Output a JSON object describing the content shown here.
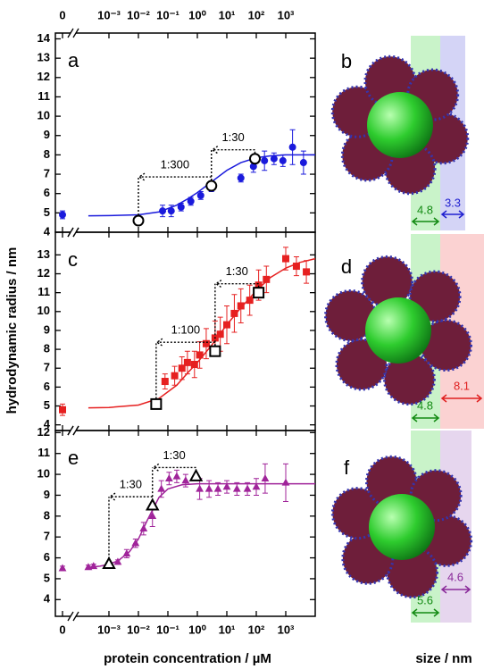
{
  "chart_data": [
    {
      "type": "scatter",
      "panel_label": "a",
      "xscale": "log",
      "xlim": [
        0.0001,
        10000
      ],
      "ylim": [
        4,
        14.3
      ],
      "yticks": [
        4,
        5,
        6,
        7,
        8,
        9,
        10,
        11,
        12,
        13,
        14
      ],
      "xticks": [
        0,
        {
          "value": 0.001,
          "label": "10⁻³"
        },
        {
          "value": 0.01,
          "label": "10⁻²"
        },
        {
          "value": 0.1,
          "label": "10⁻¹"
        },
        {
          "value": 1,
          "label": "10⁰"
        },
        {
          "value": 10,
          "label": "10¹"
        },
        {
          "value": 100,
          "label": "10²"
        },
        {
          "value": 1000,
          "label": "10³"
        }
      ],
      "series": [
        {
          "style": "line",
          "color": "#1a1adc",
          "x": [
            0.0002,
            0.001,
            0.01,
            0.05,
            0.2,
            0.5,
            1,
            3,
            10,
            30,
            100,
            300,
            1000,
            3000,
            10000
          ],
          "values": [
            4.85,
            4.86,
            4.9,
            5.05,
            5.4,
            5.75,
            6.05,
            6.6,
            7.2,
            7.6,
            7.85,
            7.95,
            8.0,
            8.0,
            8.0
          ]
        },
        {
          "style": "points",
          "marker": "circle",
          "color": "#1a1adc",
          "x": [
            0,
            0.066,
            0.13,
            0.28,
            0.6,
            1.3,
            3,
            30,
            80,
            190,
            400,
            800,
            1700,
            4000
          ],
          "values": [
            4.9,
            5.1,
            5.1,
            5.3,
            5.6,
            5.9,
            6.3,
            6.8,
            7.4,
            7.7,
            7.8,
            7.7,
            8.4,
            7.6
          ],
          "errors": [
            0.2,
            0.3,
            0.3,
            0.2,
            0.2,
            0.2,
            0.2,
            0.2,
            0.3,
            0.5,
            0.3,
            0.3,
            0.9,
            0.6
          ]
        },
        {
          "style": "open",
          "marker": "circle",
          "color": "#000000",
          "x": [
            0.01,
            3,
            90
          ],
          "values": [
            4.6,
            6.4,
            7.8
          ]
        }
      ],
      "annotations": [
        "1:300",
        "1:30"
      ]
    },
    {
      "type": "scatter",
      "panel_label": "c",
      "xscale": "log",
      "xlim": [
        0.0001,
        10000
      ],
      "ylim": [
        3.7,
        14.2
      ],
      "yticks": [
        4,
        5,
        6,
        7,
        8,
        9,
        10,
        11,
        12,
        13
      ],
      "series": [
        {
          "style": "line",
          "color": "#e62020",
          "x": [
            0.0002,
            0.001,
            0.01,
            0.05,
            0.2,
            0.5,
            1,
            3,
            10,
            30,
            100,
            300,
            1000,
            3000,
            10000
          ],
          "values": [
            4.9,
            4.92,
            5.05,
            5.4,
            6.1,
            6.8,
            7.3,
            8.2,
            9.3,
            10.2,
            11.1,
            11.8,
            12.3,
            12.6,
            12.8
          ]
        },
        {
          "style": "points",
          "marker": "square",
          "color": "#e62020",
          "x": [
            0,
            0.08,
            0.17,
            0.3,
            0.46,
            0.8,
            1.2,
            2,
            4,
            6,
            10,
            18,
            30,
            60,
            120,
            220,
            1000,
            2300,
            5000
          ],
          "values": [
            4.8,
            6.3,
            6.6,
            7.0,
            7.3,
            7.2,
            7.7,
            8.3,
            8.6,
            8.8,
            9.3,
            9.9,
            10.3,
            10.6,
            11.4,
            11.7,
            12.8,
            12.4,
            12.1
          ],
          "errors": [
            0.3,
            0.4,
            0.5,
            0.6,
            0.6,
            0.7,
            0.7,
            0.8,
            0.9,
            0.9,
            1.0,
            1.0,
            0.9,
            0.8,
            0.8,
            0.7,
            0.6,
            0.5,
            0.6
          ]
        },
        {
          "style": "open",
          "marker": "square",
          "color": "#000000",
          "x": [
            0.04,
            4,
            120
          ],
          "values": [
            5.1,
            7.9,
            11.0
          ]
        }
      ],
      "annotations": [
        "1:100",
        "1:30"
      ]
    },
    {
      "type": "scatter",
      "panel_label": "e",
      "xscale": "log",
      "xlim": [
        0.0001,
        10000
      ],
      "ylim": [
        3.2,
        12.1
      ],
      "yticks": [
        4,
        5,
        6,
        7,
        8,
        9,
        10,
        11,
        12
      ],
      "xticks": [
        0,
        {
          "value": 0.001,
          "label": "10⁻³"
        },
        {
          "value": 0.01,
          "label": "10⁻²"
        },
        {
          "value": 0.1,
          "label": "10⁻¹"
        },
        {
          "value": 1,
          "label": "10⁰"
        },
        {
          "value": 10,
          "label": "10¹"
        },
        {
          "value": 100,
          "label": "10²"
        },
        {
          "value": 1000,
          "label": "10³"
        }
      ],
      "series": [
        {
          "style": "line",
          "color": "#a0249a",
          "x": [
            0.0002,
            0.0005,
            0.001,
            0.002,
            0.005,
            0.01,
            0.02,
            0.05,
            0.1,
            0.3,
            1,
            10,
            100,
            1000,
            10000
          ],
          "values": [
            5.55,
            5.6,
            5.7,
            5.85,
            6.3,
            6.9,
            7.8,
            8.9,
            9.3,
            9.5,
            9.55,
            9.55,
            9.55,
            9.55,
            9.55
          ]
        },
        {
          "style": "points",
          "marker": "triangle",
          "color": "#a0249a",
          "x": [
            0,
            0.0002,
            0.0003,
            0.002,
            0.004,
            0.008,
            0.015,
            0.03,
            0.06,
            0.11,
            0.2,
            0.4,
            1.2,
            2.5,
            5,
            10,
            22,
            50,
            100,
            200,
            1000
          ],
          "values": [
            5.5,
            5.55,
            5.6,
            5.8,
            6.2,
            6.7,
            7.4,
            8.0,
            9.3,
            9.8,
            9.9,
            9.7,
            9.3,
            9.3,
            9.3,
            9.4,
            9.3,
            9.3,
            9.4,
            9.8,
            9.6
          ],
          "errors": [
            0.1,
            0.1,
            0.1,
            0.1,
            0.2,
            0.2,
            0.3,
            0.5,
            0.4,
            0.3,
            0.3,
            0.3,
            0.5,
            0.4,
            0.3,
            0.3,
            0.3,
            0.3,
            0.4,
            0.7,
            0.9
          ]
        },
        {
          "style": "open",
          "marker": "triangle",
          "color": "#000000",
          "x": [
            0.001,
            0.03,
            0.9
          ],
          "values": [
            5.7,
            8.5,
            9.9
          ]
        }
      ],
      "annotations": [
        "1:30",
        "1:30"
      ]
    }
  ],
  "figure": {
    "y_label": "hydrodynamic radius / nm",
    "x_label": "protein concentration / µM",
    "size_label": "size / nm"
  },
  "structures": [
    {
      "label": "b",
      "core": 4.8,
      "shell": 3.3
    },
    {
      "label": "d",
      "core": 4.8,
      "shell": 8.1
    },
    {
      "label": "f",
      "core": 5.6,
      "shell": 4.6
    }
  ]
}
